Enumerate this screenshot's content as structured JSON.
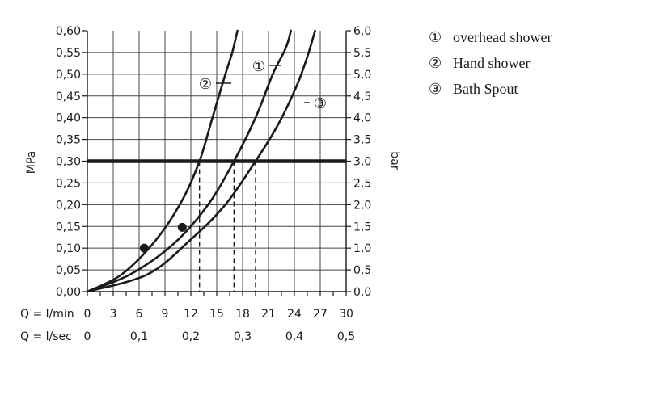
{
  "chart_data": {
    "type": "line",
    "y_left": {
      "label": "MPa",
      "range": [
        0,
        0.6
      ],
      "ticks": [
        "0,60",
        "0,55",
        "0,50",
        "0,45",
        "0,40",
        "0,35",
        "0,30",
        "0,25",
        "0,20",
        "0,15",
        "0,10",
        "0,05",
        "0,00"
      ]
    },
    "y_right": {
      "label": "bar",
      "range": [
        0,
        6
      ],
      "ticks": [
        "6,0",
        "5,5",
        "5,0",
        "4,5",
        "4,0",
        "3,5",
        "3,0",
        "2,5",
        "2,0",
        "1,5",
        "1,0",
        "0,5",
        "0,0"
      ]
    },
    "x_primary": {
      "label": "Q = l/min",
      "range": [
        0,
        30
      ],
      "ticks": [
        "0",
        "3",
        "6",
        "9",
        "12",
        "15",
        "18",
        "21",
        "24",
        "27",
        "30"
      ]
    },
    "x_secondary": {
      "label": "Q = l/sec",
      "ticks": [
        "0",
        "0,1",
        "0,2",
        "0,3",
        "0,4",
        "0,5"
      ]
    },
    "reference_line": {
      "y": 0.3
    },
    "series": [
      {
        "marker": "①",
        "name": "overhead shower",
        "points": [
          [
            0,
            0
          ],
          [
            5,
            0.04
          ],
          [
            10,
            0.11
          ],
          [
            14,
            0.2
          ],
          [
            17,
            0.3
          ],
          [
            19.5,
            0.4
          ],
          [
            21.5,
            0.5
          ],
          [
            23,
            0.56
          ],
          [
            23.6,
            0.6
          ]
        ]
      },
      {
        "marker": "②",
        "name": "Hand shower",
        "points": [
          [
            0,
            0
          ],
          [
            4,
            0.04
          ],
          [
            8,
            0.12
          ],
          [
            11,
            0.21
          ],
          [
            13,
            0.3
          ],
          [
            14.5,
            0.4
          ],
          [
            16,
            0.5
          ],
          [
            16.8,
            0.55
          ],
          [
            17.4,
            0.6
          ]
        ]
      },
      {
        "marker": "③",
        "name": "Bath Spout",
        "points": [
          [
            0,
            0
          ],
          [
            7,
            0.04
          ],
          [
            12,
            0.12
          ],
          [
            16,
            0.2
          ],
          [
            19.5,
            0.3
          ],
          [
            22,
            0.38
          ],
          [
            24.2,
            0.47
          ],
          [
            25.5,
            0.54
          ],
          [
            26.4,
            0.6
          ]
        ]
      }
    ],
    "highlight_points": [
      [
        6.6,
        0.1
      ],
      [
        11,
        0.148
      ]
    ],
    "dashed_drops": [
      [
        13,
        0.3
      ],
      [
        17,
        0.3
      ],
      [
        19.5,
        0.3
      ]
    ]
  },
  "legend": [
    {
      "marker": "①",
      "label": "overhead shower"
    },
    {
      "marker": "②",
      "label": "Hand shower"
    },
    {
      "marker": "③",
      "label": "Bath Spout"
    }
  ]
}
